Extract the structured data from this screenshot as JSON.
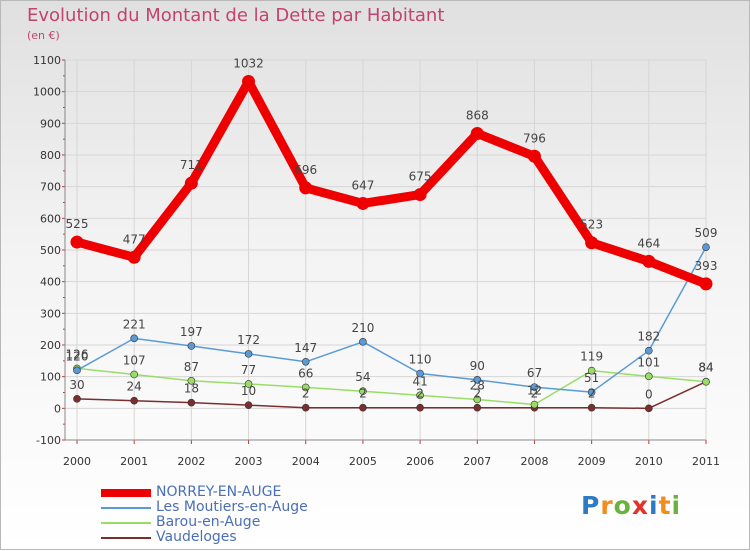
{
  "title": "Evolution du Montant de la Dette par Habitant",
  "subtitle": "(en €)",
  "logo_letters": [
    {
      "ch": "P",
      "color": "#2e7bc4"
    },
    {
      "ch": "r",
      "color": "#f28c1d"
    },
    {
      "ch": "o",
      "color": "#6ab23d"
    },
    {
      "ch": "x",
      "color": "#e2322c"
    },
    {
      "ch": "i",
      "color": "#2e7bc4"
    },
    {
      "ch": "t",
      "color": "#f28c1d"
    },
    {
      "ch": "i",
      "color": "#6ab23d"
    }
  ],
  "chart_data": {
    "type": "line",
    "title": "Evolution du Montant de la Dette par Habitant",
    "ylabel": "(en €)",
    "x": [
      "2000",
      "2001",
      "2002",
      "2003",
      "2004",
      "2005",
      "2006",
      "2007",
      "2008",
      "2009",
      "2010",
      "2011"
    ],
    "ylim": [
      -100,
      1100
    ],
    "yticks": [
      -100,
      0,
      100,
      200,
      300,
      400,
      500,
      600,
      700,
      800,
      900,
      1000,
      1100
    ],
    "grid": true,
    "legend_position": "bottom-left",
    "series": [
      {
        "name": "NORREY-EN-AUGE",
        "color": "#ee0000",
        "values": [
          525,
          477,
          711,
          1032,
          696,
          647,
          675,
          868,
          796,
          523,
          464,
          393
        ]
      },
      {
        "name": "Les Moutiers-en-Auge",
        "color": "#5b9bd5",
        "values": [
          120,
          221,
          197,
          172,
          147,
          210,
          110,
          90,
          67,
          51,
          182,
          509
        ]
      },
      {
        "name": "Barou-en-Auge",
        "color": "#99dd66",
        "values": [
          126,
          107,
          87,
          77,
          66,
          54,
          41,
          28,
          12,
          119,
          101,
          84
        ]
      },
      {
        "name": "Vaudeloges",
        "color": "#7a2e2e",
        "values": [
          30,
          24,
          18,
          10,
          2,
          2,
          2,
          2,
          2,
          2,
          0,
          84
        ]
      }
    ]
  }
}
